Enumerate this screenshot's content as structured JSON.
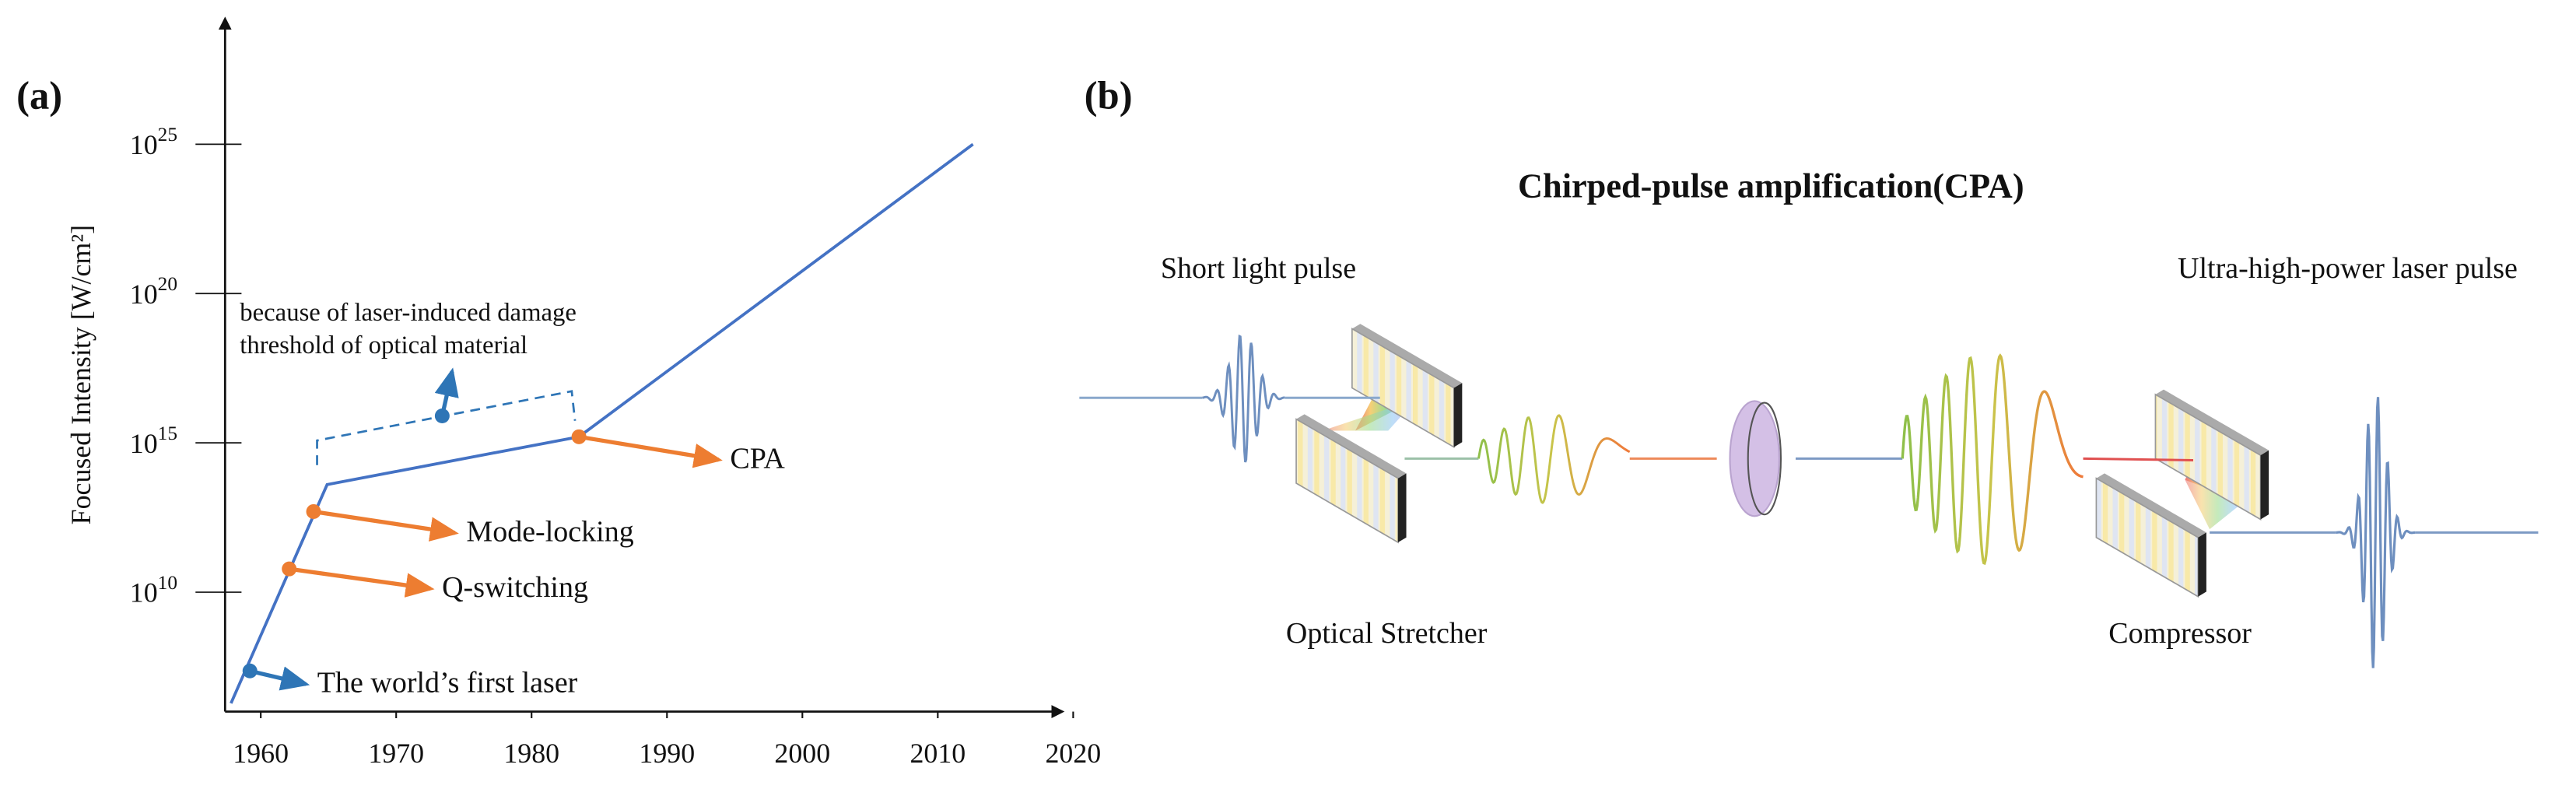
{
  "panel_a": {
    "label": "(a)"
  },
  "chart_data": {
    "type": "line",
    "ylabel": "Focused Intensity [W/cm²]",
    "log_y": true,
    "xlim": [
      1957,
      2019
    ],
    "ylim": [
      1000000.0,
      1e+29
    ],
    "xticks": [
      1960,
      1970,
      1980,
      1990,
      2000,
      2010,
      2020
    ],
    "yticks": [
      {
        "value": 10000000000.0,
        "label": "10",
        "label_exponent": "10"
      },
      {
        "value": 1000000000000000.0,
        "label": "10",
        "label_exponent": "15"
      },
      {
        "value": 1e+20,
        "label": "10",
        "label_exponent": "20"
      },
      {
        "value": 1e+25,
        "label": "10",
        "label_exponent": "25"
      }
    ],
    "series": [
      {
        "color": "#4472c4",
        "x": [
          1957.8,
          1964.9,
          1983.5,
          2012.6
        ],
        "values": [
          1900000.0,
          40000000000000.0,
          1600000000000000.0,
          1e+25
        ]
      }
    ],
    "annotations": [
      {
        "text": "The world’s first laser",
        "x": 1959.2,
        "y": 23000000.0,
        "color": "#2e75b6"
      },
      {
        "text": "Q-switching",
        "x": 1962.1,
        "y": 60000000000.0,
        "color": "#ed7d31"
      },
      {
        "text": "Mode-locking",
        "x": 1963.9,
        "y": 5000000000000.0,
        "color": "#ed7d31"
      },
      {
        "text": "CPA",
        "x": 1983.5,
        "y": 1600000000000000.0,
        "color": "#ed7d31"
      }
    ],
    "note": {
      "lines": [
        "because of laser-induced damage",
        "threshold of optical material"
      ],
      "x": 1973.4,
      "y": 8000000000000000.0,
      "color": "#2e75b6"
    }
  },
  "panel_b": {
    "label": "(b)",
    "title": "Chirped-pulse amplification(CPA)",
    "input_label": "Short light pulse",
    "output_label": "Ultra-high-power laser pulse",
    "stretcher_label": "Optical Stretcher",
    "compressor_label": "Compressor"
  }
}
